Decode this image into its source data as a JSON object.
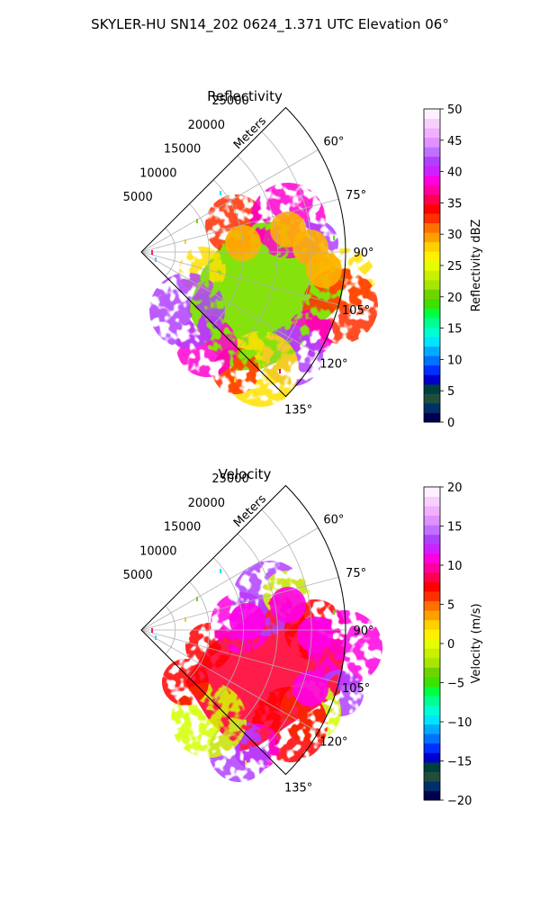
{
  "figure": {
    "suptitle": "SKYLER-HU  SN14_202  0624_1.371 UTC Elevation 06°"
  },
  "chart_data": [
    {
      "type": "heatmap",
      "projection": "polar-sector",
      "title": "Reflectivity",
      "radial_label": "Meters",
      "radial_ticks": [
        5000,
        10000,
        15000,
        20000,
        25000
      ],
      "r_max": 30000,
      "theta_range_deg": [
        45,
        135
      ],
      "theta_ticks": [
        "60°",
        "75°",
        "90°",
        "105°",
        "120°",
        "135°"
      ],
      "theta_tick_values": [
        60,
        75,
        90,
        105,
        120,
        135
      ],
      "grid": true,
      "colorbar": {
        "label": "Reflectivity dBZ",
        "min": 0,
        "max": 50,
        "ticks": [
          "0",
          "5",
          "10",
          "15",
          "20",
          "25",
          "30",
          "35",
          "40",
          "45",
          "50"
        ],
        "tick_values": [
          0,
          5,
          10,
          15,
          20,
          25,
          30,
          35,
          40,
          45,
          50
        ],
        "colors": [
          "#00004f",
          "#00306a",
          "#1f4f3c",
          "#003f3f",
          "#0000cc",
          "#0030ff",
          "#0070ff",
          "#00aaff",
          "#00e5ff",
          "#00ffd0",
          "#00ff90",
          "#00ff40",
          "#40e000",
          "#6ed400",
          "#a6e600",
          "#c8f000",
          "#e6ff00",
          "#fff000",
          "#ffd000",
          "#ffa000",
          "#ff7000",
          "#ff3000",
          "#ff0000",
          "#ff0050",
          "#ff00a0",
          "#ff00e0",
          "#d020ff",
          "#b040ff",
          "#c070ff",
          "#e090ff",
          "#f0b0ff",
          "#f8d0ff",
          "#fff0ff"
        ]
      },
      "echo_region": {
        "theta_deg": [
          82,
          130
        ],
        "r_m": [
          7000,
          26000
        ],
        "dominant_values": "20–45 dBZ, core ~35–42 dBZ"
      }
    },
    {
      "type": "heatmap",
      "projection": "polar-sector",
      "title": "Velocity",
      "radial_label": "Meters",
      "radial_ticks": [
        5000,
        10000,
        15000,
        20000,
        25000
      ],
      "r_max": 30000,
      "theta_range_deg": [
        45,
        135
      ],
      "theta_ticks": [
        "60°",
        "75°",
        "90°",
        "105°",
        "120°",
        "135°"
      ],
      "theta_tick_values": [
        60,
        75,
        90,
        105,
        120,
        135
      ],
      "grid": true,
      "colorbar": {
        "label": "Velocity (m/s)",
        "min": -20,
        "max": 20,
        "ticks": [
          "−20",
          "−15",
          "−10",
          "−5",
          "0",
          "5",
          "10",
          "15",
          "20"
        ],
        "tick_values": [
          -20,
          -15,
          -10,
          -5,
          0,
          5,
          10,
          15,
          20
        ],
        "colors": [
          "#00004f",
          "#00306a",
          "#1f4f3c",
          "#003f3f",
          "#0000cc",
          "#0030ff",
          "#0070ff",
          "#00aaff",
          "#00e5ff",
          "#00ffd0",
          "#00ff90",
          "#00ff40",
          "#40e000",
          "#6ed400",
          "#a6e600",
          "#c8f000",
          "#e6ff00",
          "#fff000",
          "#ffd000",
          "#ffa000",
          "#ff7000",
          "#ff3000",
          "#ff0000",
          "#ff0050",
          "#ff00a0",
          "#ff00e0",
          "#d020ff",
          "#b040ff",
          "#c070ff",
          "#e090ff",
          "#f0b0ff",
          "#f8d0ff",
          "#fff0ff"
        ]
      },
      "echo_region": {
        "theta_deg": [
          82,
          130
        ],
        "r_m": [
          7000,
          26000
        ],
        "dominant_values": "5–15 m/s, patches near 0 m/s"
      }
    }
  ]
}
